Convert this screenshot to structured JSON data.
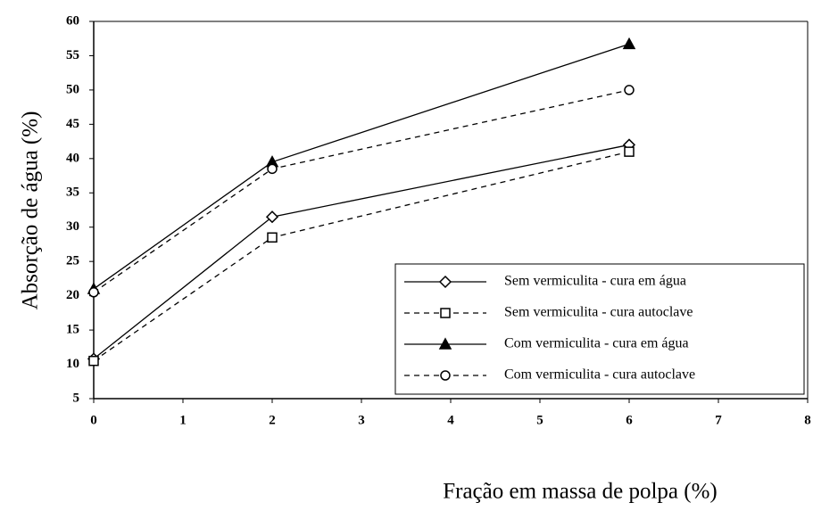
{
  "chart_data": {
    "type": "line",
    "x_label": "Fração em massa de polpa (%)",
    "y_label": "Absorção de água (%)",
    "x": [
      0,
      2,
      6
    ],
    "xlim": [
      0,
      8
    ],
    "xticks": [
      0,
      1,
      2,
      3,
      4,
      5,
      6,
      7,
      8
    ],
    "ylim": [
      5,
      60
    ],
    "yticks": [
      5,
      10,
      15,
      20,
      25,
      30,
      35,
      40,
      45,
      50,
      55,
      60
    ],
    "legend": "lower right",
    "series": [
      {
        "name": "Sem vermiculita - cura em água",
        "color": "#000000",
        "dash": false,
        "marker": "diamond",
        "values": [
          10.8,
          31.5,
          42
        ]
      },
      {
        "name": "Sem vermiculita - cura autoclave",
        "color": "#000000",
        "dash": true,
        "marker": "square",
        "values": [
          10.5,
          28.5,
          41
        ]
      },
      {
        "name": "Com vermiculita - cura em água",
        "color": "#000000",
        "dash": false,
        "marker": "triangle",
        "values": [
          21,
          39.5,
          56.7
        ]
      },
      {
        "name": "Com vermiculita - cura autoclave",
        "color": "#000000",
        "dash": true,
        "marker": "circle",
        "values": [
          20.5,
          38.5,
          50
        ]
      }
    ]
  }
}
